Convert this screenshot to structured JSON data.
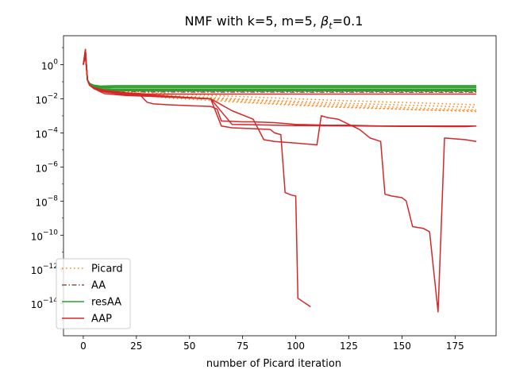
{
  "chart_data": {
    "type": "line",
    "title": "NMF with k=5, m=5,  βₜ=0.1",
    "title_parts": {
      "main": "NMF with k=5, m=5,  ",
      "beta": "β",
      "sub": "t",
      "tail": "=0.1"
    },
    "xlabel": "number of Picard iteration",
    "ylabel": "",
    "y_scale": "log",
    "xlim": [
      -9.3,
      194.3
    ],
    "ylim_log10": [
      -15.9,
      1.7
    ],
    "x_ticks": [
      0,
      25,
      50,
      75,
      100,
      125,
      150,
      175
    ],
    "x_tick_labels": [
      "0",
      "25",
      "50",
      "75",
      "100",
      "125",
      "150",
      "175"
    ],
    "y_ticks_log10": [
      0,
      -2,
      -4,
      -6,
      -8,
      -10,
      -12,
      -14
    ],
    "y_tick_labels": [
      {
        "base": "10",
        "exp": "0"
      },
      {
        "base": "10",
        "exp": "−2"
      },
      {
        "base": "10",
        "exp": "−4"
      },
      {
        "base": "10",
        "exp": "−6"
      },
      {
        "base": "10",
        "exp": "−8"
      },
      {
        "base": "10",
        "exp": "−10"
      },
      {
        "base": "10",
        "exp": "−12"
      },
      {
        "base": "10",
        "exp": "−14"
      }
    ],
    "grid": false,
    "legend_position": "lower-left",
    "legend": [
      {
        "label": "Picard",
        "color": "#ff7f0e",
        "dash": "dotted"
      },
      {
        "label": "AA",
        "color": "#8c564b",
        "dash": "dashdot"
      },
      {
        "label": "resAA",
        "color": "#2ca02c",
        "dash": "solid"
      },
      {
        "label": "AAP",
        "color": "#d62728",
        "dash": "solid"
      }
    ],
    "series": [
      {
        "group": "Picard",
        "color": "#ff7f0e",
        "dash": "dotted",
        "x": [
          0,
          1,
          2,
          3,
          5,
          10,
          20,
          40,
          80,
          120,
          160,
          185
        ],
        "y_log10": [
          0,
          0.8,
          -0.9,
          -1.2,
          -1.3,
          -1.45,
          -1.62,
          -1.8,
          -2.05,
          -2.25,
          -2.4,
          -2.5
        ]
      },
      {
        "group": "Picard",
        "color": "#ff7f0e",
        "dash": "dotted",
        "x": [
          0,
          1,
          2,
          3,
          5,
          10,
          20,
          40,
          80,
          120,
          160,
          185
        ],
        "y_log10": [
          0,
          0.7,
          -0.9,
          -1.2,
          -1.35,
          -1.5,
          -1.65,
          -1.85,
          -2.1,
          -2.35,
          -2.55,
          -2.65
        ]
      },
      {
        "group": "Picard",
        "color": "#ff7f0e",
        "dash": "dotted",
        "x": [
          0,
          1,
          2,
          3,
          5,
          10,
          20,
          40,
          80,
          120,
          160,
          185
        ],
        "y_log10": [
          0,
          0.6,
          -0.9,
          -1.2,
          -1.3,
          -1.45,
          -1.6,
          -1.85,
          -2.2,
          -2.45,
          -2.65,
          -2.75
        ]
      },
      {
        "group": "Picard",
        "color": "#ff7f0e",
        "dash": "dotted",
        "x": [
          0,
          1,
          2,
          3,
          5,
          10,
          20,
          40,
          80,
          120,
          160,
          185
        ],
        "y_log10": [
          0,
          0.9,
          -0.9,
          -1.2,
          -1.32,
          -1.42,
          -1.55,
          -1.7,
          -1.9,
          -2.1,
          -2.25,
          -2.35
        ]
      },
      {
        "group": "Picard",
        "color": "#ff7f0e",
        "dash": "dotted",
        "x": [
          0,
          1,
          2,
          3,
          5,
          10,
          20,
          40,
          80,
          120,
          160,
          185
        ],
        "y_log10": [
          0,
          0.5,
          -0.9,
          -1.2,
          -1.35,
          -1.5,
          -1.7,
          -1.95,
          -2.25,
          -2.5,
          -2.65,
          -2.7
        ]
      },
      {
        "group": "AA",
        "color": "#8c564b",
        "dash": "dashdot",
        "x": [
          0,
          1,
          2,
          3,
          5,
          10,
          30,
          185
        ],
        "y_log10": [
          0,
          0.75,
          -0.9,
          -1.2,
          -1.35,
          -1.5,
          -1.6,
          -1.62
        ]
      },
      {
        "group": "AA",
        "color": "#8c564b",
        "dash": "dashdot",
        "x": [
          0,
          1,
          2,
          3,
          5,
          10,
          30,
          185
        ],
        "y_log10": [
          0,
          0.6,
          -0.9,
          -1.2,
          -1.3,
          -1.45,
          -1.55,
          -1.57
        ]
      },
      {
        "group": "resAA",
        "color": "#2ca02c",
        "dash": "solid",
        "x": [
          0,
          1,
          2,
          3,
          5,
          8,
          15,
          185
        ],
        "y_log10": [
          0,
          0.8,
          -0.9,
          -1.1,
          -1.2,
          -1.25,
          -1.23,
          -1.23
        ]
      },
      {
        "group": "resAA",
        "color": "#2ca02c",
        "dash": "solid",
        "x": [
          0,
          1,
          2,
          3,
          5,
          8,
          15,
          185
        ],
        "y_log10": [
          0,
          0.7,
          -0.9,
          -1.1,
          -1.22,
          -1.3,
          -1.3,
          -1.3
        ]
      },
      {
        "group": "resAA",
        "color": "#2ca02c",
        "dash": "solid",
        "x": [
          0,
          1,
          2,
          3,
          5,
          8,
          15,
          185
        ],
        "y_log10": [
          0,
          0.6,
          -0.9,
          -1.1,
          -1.25,
          -1.35,
          -1.37,
          -1.37
        ]
      },
      {
        "group": "resAA",
        "color": "#2ca02c",
        "dash": "solid",
        "x": [
          0,
          1,
          2,
          3,
          5,
          8,
          15,
          185
        ],
        "y_log10": [
          0,
          0.9,
          -0.9,
          -1.1,
          -1.27,
          -1.42,
          -1.45,
          -1.45
        ]
      },
      {
        "group": "resAA",
        "color": "#2ca02c",
        "dash": "solid",
        "x": [
          0,
          1,
          2,
          3,
          5,
          8,
          15,
          185
        ],
        "y_log10": [
          0,
          0.5,
          -0.9,
          -1.1,
          -1.3,
          -1.48,
          -1.52,
          -1.52
        ]
      },
      {
        "group": "AAP",
        "color": "#d62728",
        "dash": "solid",
        "x": [
          0,
          1,
          2,
          3,
          5,
          10,
          20,
          30,
          50,
          185
        ],
        "y_log10": [
          0,
          0.8,
          -0.9,
          -1.2,
          -1.35,
          -1.5,
          -1.65,
          -1.72,
          -1.72,
          -1.72
        ]
      },
      {
        "group": "AAP",
        "color": "#d62728",
        "dash": "solid",
        "x": [
          0,
          1,
          2,
          3,
          5,
          10,
          20,
          27,
          30,
          33,
          40,
          50,
          60,
          63,
          65,
          75,
          80,
          90,
          100,
          115,
          125,
          140,
          160,
          185
        ],
        "y_log10": [
          0,
          0.7,
          -0.9,
          -1.2,
          -1.4,
          -1.6,
          -1.75,
          -1.8,
          -2.2,
          -2.3,
          -2.35,
          -2.4,
          -2.45,
          -2.6,
          -3.3,
          -3.35,
          -3.35,
          -3.4,
          -3.5,
          -3.55,
          -3.55,
          -3.6,
          -3.6,
          -3.6
        ]
      },
      {
        "group": "AAP",
        "color": "#d62728",
        "dash": "solid",
        "x": [
          0,
          1,
          2,
          3,
          5,
          10,
          20,
          40,
          60,
          65,
          70,
          80,
          88,
          90,
          93,
          95,
          97,
          98,
          100,
          101,
          107
        ],
        "y_log10": [
          0,
          0.6,
          -0.9,
          -1.2,
          -1.4,
          -1.7,
          -1.8,
          -1.9,
          -2.0,
          -3.6,
          -3.7,
          -3.75,
          -3.8,
          -4.0,
          -4.1,
          -7.5,
          -7.6,
          -7.65,
          -7.7,
          -13.7,
          -14.2
        ]
      },
      {
        "group": "AAP",
        "color": "#d62728",
        "dash": "solid",
        "x": [
          0,
          1,
          2,
          3,
          5,
          10,
          20,
          40,
          60,
          70,
          80,
          85,
          90,
          95,
          100,
          105,
          110,
          112,
          115,
          120,
          125,
          130,
          135,
          140,
          142,
          145,
          150,
          152,
          155,
          160,
          163,
          167,
          170,
          180,
          185
        ],
        "y_log10": [
          0,
          0.9,
          -0.9,
          -1.2,
          -1.35,
          -1.55,
          -1.7,
          -1.85,
          -2.0,
          -2.7,
          -3.2,
          -4.4,
          -4.5,
          -4.55,
          -4.6,
          -4.65,
          -4.7,
          -3.0,
          -3.1,
          -3.2,
          -3.5,
          -3.8,
          -4.3,
          -4.5,
          -7.6,
          -7.7,
          -7.8,
          -8.0,
          -9.5,
          -9.6,
          -9.8,
          -14.5,
          -4.3,
          -4.4,
          -4.5
        ]
      },
      {
        "group": "AAP",
        "color": "#d62728",
        "dash": "solid",
        "x": [
          0,
          1,
          2,
          3,
          5,
          10,
          20,
          40,
          60,
          70,
          80,
          90,
          100,
          110,
          120,
          130,
          140,
          150,
          160,
          170,
          180,
          185
        ],
        "y_log10": [
          0,
          0.5,
          -0.9,
          -1.2,
          -1.4,
          -1.6,
          -1.75,
          -1.9,
          -2.0,
          -3.5,
          -3.52,
          -3.55,
          -3.57,
          -3.58,
          -3.59,
          -3.6,
          -3.61,
          -3.62,
          -3.62,
          -3.63,
          -3.63,
          -3.6
        ]
      }
    ]
  }
}
